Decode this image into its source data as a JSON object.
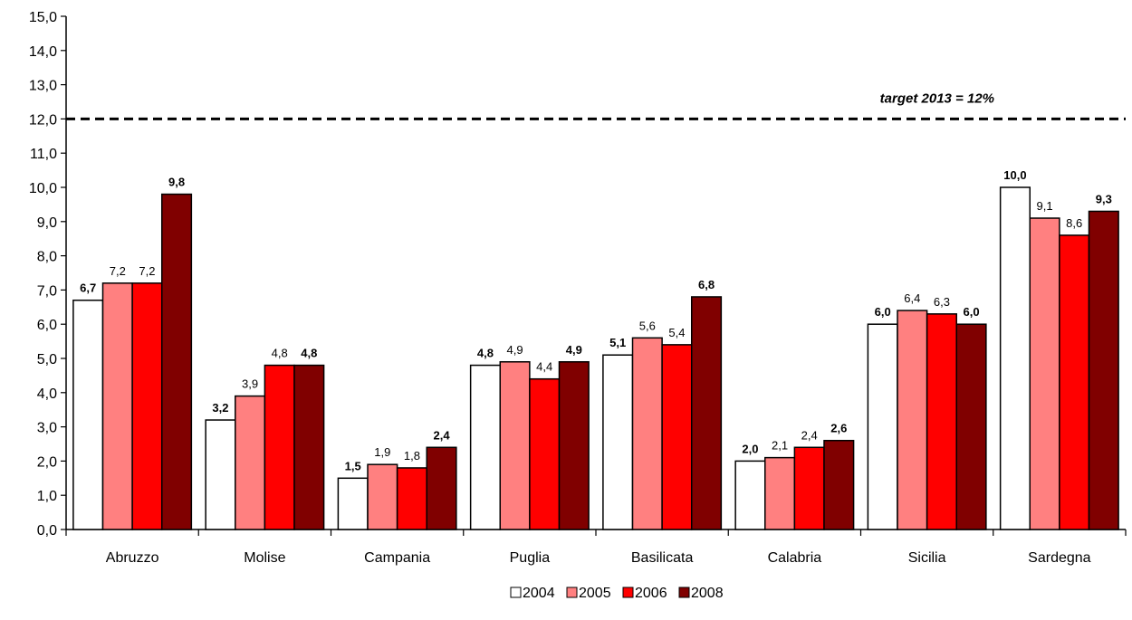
{
  "chart_data": {
    "type": "bar",
    "title": "",
    "xlabel": "",
    "ylabel": "",
    "ylim": [
      0,
      15
    ],
    "yticks": [
      "0,0",
      "1,0",
      "2,0",
      "3,0",
      "4,0",
      "5,0",
      "6,0",
      "7,0",
      "8,0",
      "9,0",
      "10,0",
      "11,0",
      "12,0",
      "13,0",
      "14,0",
      "15,0"
    ],
    "categories": [
      "Abruzzo",
      "Molise",
      "Campania",
      "Puglia",
      "Basilicata",
      "Calabria",
      "Sicilia",
      "Sardegna"
    ],
    "series": [
      {
        "name": "2004",
        "color": "#ffffff",
        "values": [
          6.7,
          3.2,
          1.5,
          4.8,
          5.1,
          2.0,
          6.0,
          10.0
        ],
        "labels": [
          "6,7",
          "3,2",
          "1,5",
          "4,8",
          "5,1",
          "2,0",
          "6,0",
          "10,0"
        ],
        "bold_labels": true
      },
      {
        "name": "2005",
        "color": "#ff8080",
        "values": [
          7.2,
          3.9,
          1.9,
          4.9,
          5.6,
          2.1,
          6.4,
          9.1
        ],
        "labels": [
          "7,2",
          "3,9",
          "1,9",
          "4,9",
          "5,6",
          "2,1",
          "6,4",
          "9,1"
        ],
        "bold_labels": false
      },
      {
        "name": "2006",
        "color": "#ff0000",
        "values": [
          7.2,
          4.8,
          1.8,
          4.4,
          5.4,
          2.4,
          6.3,
          8.6
        ],
        "labels": [
          "7,2",
          "4,8",
          "1,8",
          "4,4",
          "5,4",
          "2,4",
          "6,3",
          "8,6"
        ],
        "bold_labels": false
      },
      {
        "name": "2008",
        "color": "#800000",
        "values": [
          9.8,
          4.8,
          2.4,
          4.9,
          6.8,
          2.6,
          6.0,
          9.3
        ],
        "labels": [
          "9,8",
          "4,8",
          "2,4",
          "4,9",
          "6,8",
          "2,6",
          "6,0",
          "9,3"
        ],
        "bold_labels": true
      }
    ],
    "reference_line": {
      "value": 12,
      "style": "dashed",
      "label": "target 2013 = 12%"
    },
    "legend_position": "bottom",
    "grid": false
  }
}
